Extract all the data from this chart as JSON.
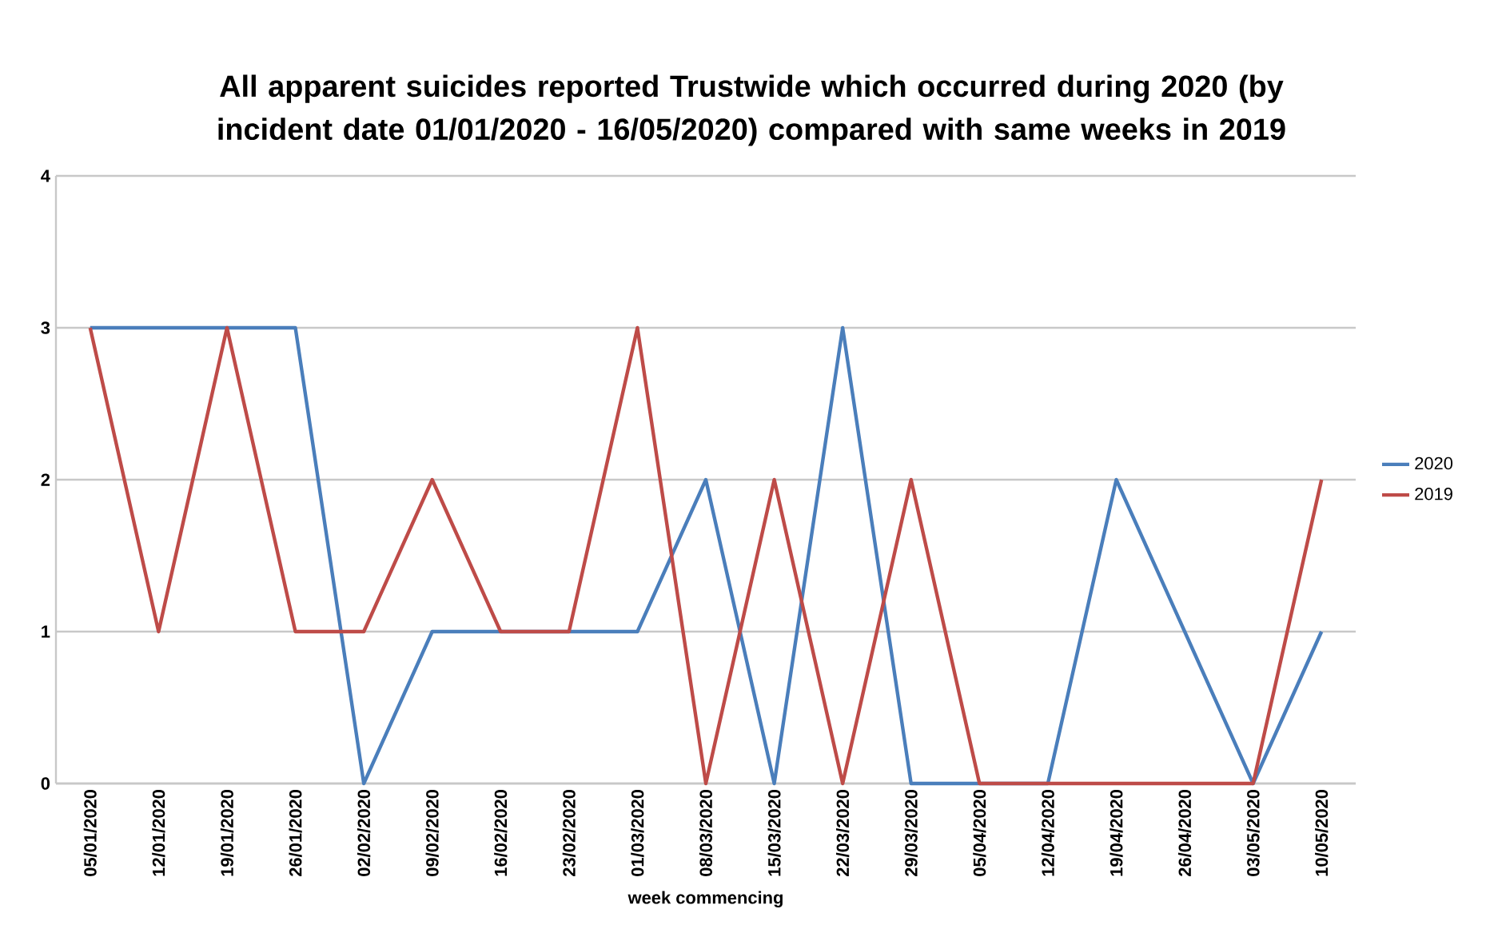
{
  "chart_data": {
    "type": "line",
    "title": "All apparent suicides reported Trustwide which occurred during 2020 (by incident date 01/01/2020 - 16/05/2020) compared with same weeks in 2019",
    "xlabel": "week commencing",
    "categories": [
      "05/01/2020",
      "12/01/2020",
      "19/01/2020",
      "26/01/2020",
      "02/02/2020",
      "09/02/2020",
      "16/02/2020",
      "23/02/2020",
      "01/03/2020",
      "08/03/2020",
      "15/03/2020",
      "22/03/2020",
      "29/03/2020",
      "05/04/2020",
      "12/04/2020",
      "19/04/2020",
      "26/04/2020",
      "03/05/2020",
      "10/05/2020"
    ],
    "series": [
      {
        "name": "2020",
        "color": "#4a7ebb",
        "values": [
          3,
          3,
          3,
          3,
          0,
          1,
          1,
          1,
          1,
          2,
          0,
          3,
          0,
          0,
          0,
          2,
          1,
          0,
          1
        ]
      },
      {
        "name": "2019",
        "color": "#be4b48",
        "values": [
          3,
          1,
          3,
          1,
          1,
          2,
          1,
          1,
          3,
          0,
          2,
          0,
          2,
          0,
          0,
          0,
          0,
          0,
          2
        ]
      }
    ],
    "ylim": [
      0,
      4
    ],
    "yticks": [
      0,
      1,
      2,
      3,
      4
    ],
    "grid": "y",
    "legend": "right",
    "marker": "none",
    "line_style": "solid"
  }
}
